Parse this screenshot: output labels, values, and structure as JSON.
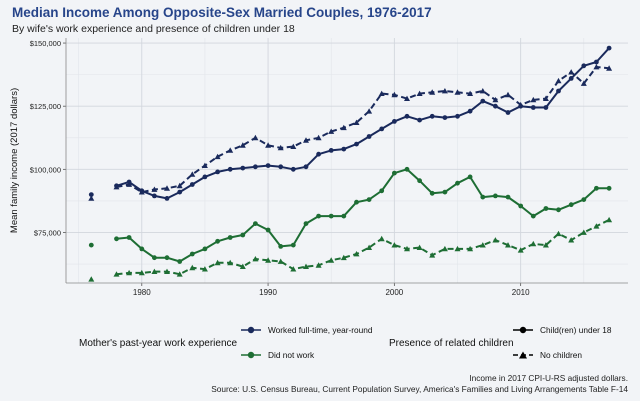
{
  "header": {
    "title": "Median Income Among Opposite-Sex Married Couples, 1976-2017",
    "subtitle": "By wife's work experience and presence of children under 18"
  },
  "footer": {
    "note_line1": "Income in 2017 CPI-U-RS adjusted dollars.",
    "note_line2": "Source: U.S. Census Bureau, Current Population Survey, America's Families and Living Arrangements Table F-14"
  },
  "legend": {
    "work_title": "Mother's past-year work experience",
    "work_items": [
      "Worked full-time, year-round",
      "Did not work"
    ],
    "children_title": "Presence of related children",
    "children_items": [
      "Child(ren) under 18",
      "No children"
    ]
  },
  "colors": {
    "full_time": "#1a2a5c",
    "not_work": "#1e6e34",
    "background": "#f2f4f7",
    "title": "#27458a"
  },
  "chart_data": {
    "type": "line",
    "title": "Median Income Among Opposite-Sex Married Couples, 1976-2017",
    "subtitle": "By wife's work experience and presence of children under 18",
    "xlabel": "",
    "ylabel": "Mean family income (2017 dollars)",
    "xlim": [
      1974,
      2018.5
    ],
    "ylim": [
      55000,
      152000
    ],
    "x_ticks": [
      1980,
      1990,
      2000,
      2010
    ],
    "y_ticks": [
      75000,
      100000,
      125000,
      150000
    ],
    "y_tick_labels": [
      "$75,000",
      "$100,000",
      "$125,000",
      "$150,000"
    ],
    "grid": true,
    "series": [
      {
        "name": "Worked full-time, year-round — Child(ren) under 18",
        "work": "full_time",
        "children": "with",
        "style": "solid",
        "marker": "circle",
        "points": [
          [
            1976,
            90000
          ],
          [
            1978,
            93500
          ],
          [
            1979,
            95000
          ],
          [
            1980,
            91500
          ],
          [
            1981,
            89500
          ],
          [
            1982,
            88500
          ],
          [
            1983,
            91000
          ],
          [
            1984,
            94000
          ],
          [
            1985,
            97000
          ],
          [
            1986,
            99000
          ],
          [
            1987,
            100000
          ],
          [
            1988,
            100500
          ],
          [
            1989,
            101000
          ],
          [
            1990,
            101500
          ],
          [
            1991,
            101000
          ],
          [
            1992,
            100000
          ],
          [
            1993,
            101000
          ],
          [
            1994,
            106000
          ],
          [
            1995,
            107500
          ],
          [
            1996,
            108000
          ],
          [
            1997,
            110000
          ],
          [
            1998,
            113000
          ],
          [
            1999,
            116000
          ],
          [
            2000,
            119000
          ],
          [
            2001,
            121000
          ],
          [
            2002,
            119500
          ],
          [
            2003,
            121000
          ],
          [
            2004,
            120500
          ],
          [
            2005,
            121000
          ],
          [
            2006,
            123000
          ],
          [
            2007,
            127000
          ],
          [
            2008,
            125000
          ],
          [
            2009,
            122500
          ],
          [
            2010,
            125000
          ],
          [
            2011,
            124500
          ],
          [
            2012,
            124500
          ],
          [
            2013,
            131000
          ],
          [
            2014,
            136000
          ],
          [
            2015,
            141000
          ],
          [
            2016,
            142500
          ],
          [
            2017,
            148000
          ]
        ]
      },
      {
        "name": "Worked full-time, year-round — No children",
        "work": "full_time",
        "children": "without",
        "style": "dashed",
        "marker": "triangle",
        "points": [
          [
            1976,
            88500
          ],
          [
            1978,
            93000
          ],
          [
            1979,
            94000
          ],
          [
            1980,
            91000
          ],
          [
            1981,
            92000
          ],
          [
            1982,
            92500
          ],
          [
            1983,
            93500
          ],
          [
            1984,
            98000
          ],
          [
            1985,
            101500
          ],
          [
            1986,
            105000
          ],
          [
            1987,
            107500
          ],
          [
            1988,
            109500
          ],
          [
            1989,
            112500
          ],
          [
            1990,
            109500
          ],
          [
            1991,
            108500
          ],
          [
            1992,
            109000
          ],
          [
            1993,
            111500
          ],
          [
            1994,
            112500
          ],
          [
            1995,
            115000
          ],
          [
            1996,
            116500
          ],
          [
            1997,
            118500
          ],
          [
            1998,
            123000
          ],
          [
            1999,
            130000
          ],
          [
            2000,
            129500
          ],
          [
            2001,
            128000
          ],
          [
            2002,
            130000
          ],
          [
            2003,
            130500
          ],
          [
            2004,
            131000
          ],
          [
            2005,
            130500
          ],
          [
            2006,
            130000
          ],
          [
            2007,
            131000
          ],
          [
            2008,
            127500
          ],
          [
            2009,
            129500
          ],
          [
            2010,
            125500
          ],
          [
            2011,
            127500
          ],
          [
            2012,
            128000
          ],
          [
            2013,
            135000
          ],
          [
            2014,
            138500
          ],
          [
            2015,
            134000
          ],
          [
            2016,
            140500
          ],
          [
            2017,
            140000
          ]
        ]
      },
      {
        "name": "Did not work — Child(ren) under 18",
        "work": "not_work",
        "children": "with",
        "style": "solid",
        "marker": "circle",
        "points": [
          [
            1976,
            70000
          ],
          [
            1978,
            72500
          ],
          [
            1979,
            73000
          ],
          [
            1980,
            68500
          ],
          [
            1981,
            65000
          ],
          [
            1982,
            65000
          ],
          [
            1983,
            63500
          ],
          [
            1984,
            66500
          ],
          [
            1985,
            68500
          ],
          [
            1986,
            71500
          ],
          [
            1987,
            73000
          ],
          [
            1988,
            74000
          ],
          [
            1989,
            78500
          ],
          [
            1990,
            76000
          ],
          [
            1991,
            69500
          ],
          [
            1992,
            70000
          ],
          [
            1993,
            78500
          ],
          [
            1994,
            81500
          ],
          [
            1995,
            81500
          ],
          [
            1996,
            81500
          ],
          [
            1997,
            87000
          ],
          [
            1998,
            88000
          ],
          [
            1999,
            91500
          ],
          [
            2000,
            98500
          ],
          [
            2001,
            100000
          ],
          [
            2002,
            95500
          ],
          [
            2003,
            90500
          ],
          [
            2004,
            91000
          ],
          [
            2005,
            94500
          ],
          [
            2006,
            97000
          ],
          [
            2007,
            89000
          ],
          [
            2008,
            89500
          ],
          [
            2009,
            89000
          ],
          [
            2010,
            85500
          ],
          [
            2011,
            81500
          ],
          [
            2012,
            84500
          ],
          [
            2013,
            84000
          ],
          [
            2014,
            86000
          ],
          [
            2015,
            88000
          ],
          [
            2016,
            92500
          ],
          [
            2017,
            92500
          ]
        ]
      },
      {
        "name": "Did not work — No children",
        "work": "not_work",
        "children": "without",
        "style": "dashed",
        "marker": "triangle",
        "points": [
          [
            1976,
            56500
          ],
          [
            1978,
            58500
          ],
          [
            1979,
            59000
          ],
          [
            1980,
            59000
          ],
          [
            1981,
            59500
          ],
          [
            1982,
            59500
          ],
          [
            1983,
            58500
          ],
          [
            1984,
            61000
          ],
          [
            1985,
            60500
          ],
          [
            1986,
            63000
          ],
          [
            1987,
            63000
          ],
          [
            1988,
            61500
          ],
          [
            1989,
            64500
          ],
          [
            1990,
            64000
          ],
          [
            1991,
            63500
          ],
          [
            1992,
            60500
          ],
          [
            1993,
            61500
          ],
          [
            1994,
            62000
          ],
          [
            1995,
            64000
          ],
          [
            1996,
            65000
          ],
          [
            1997,
            66500
          ],
          [
            1998,
            69000
          ],
          [
            1999,
            72500
          ],
          [
            2000,
            70000
          ],
          [
            2001,
            68500
          ],
          [
            2002,
            69000
          ],
          [
            2003,
            66000
          ],
          [
            2004,
            68500
          ],
          [
            2005,
            68500
          ],
          [
            2006,
            68500
          ],
          [
            2007,
            70000
          ],
          [
            2008,
            72000
          ],
          [
            2009,
            70000
          ],
          [
            2010,
            68000
          ],
          [
            2011,
            70500
          ],
          [
            2012,
            70000
          ],
          [
            2013,
            74500
          ],
          [
            2014,
            72000
          ],
          [
            2015,
            75000
          ],
          [
            2016,
            77500
          ],
          [
            2017,
            80000
          ]
        ]
      }
    ]
  }
}
